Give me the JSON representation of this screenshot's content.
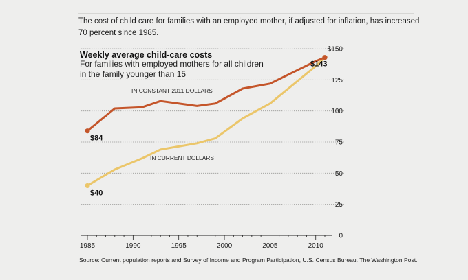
{
  "caption": "The cost of child care for families with an employed mother, if adjusted for inflation, has increased 70 percent since 1985.",
  "source": "Source: Current population reports and Survey of Income and Program Participation, U.S. Census Bureau. The Washington Post.",
  "chart_data": {
    "type": "line",
    "title": "Weekly average child-care costs",
    "subtitle_lines": [
      "For families with employed mothers for all children",
      "in the family younger than 15"
    ],
    "xlabel": "",
    "ylabel": "",
    "xlim": [
      1985,
      2011
    ],
    "ylim": [
      0,
      150
    ],
    "x_ticks": [
      "1985",
      "1990",
      "1995",
      "2000",
      "2005",
      "2010"
    ],
    "x_tick_values": [
      1985,
      1990,
      1995,
      2000,
      2005,
      2010
    ],
    "y_ticks": [
      "0",
      "25",
      "50",
      "75",
      "100",
      "125",
      "$150"
    ],
    "y_tick_values": [
      0,
      25,
      50,
      75,
      100,
      125,
      150
    ],
    "grid": true,
    "series": [
      {
        "name": "IN CONSTANT 2011 DOLLARS",
        "color": "#c4552a",
        "x": [
          1985,
          1988,
          1991,
          1993,
          1997,
          1999,
          2002,
          2005,
          2010,
          2011
        ],
        "values": [
          84,
          102,
          103,
          108,
          104,
          106,
          118,
          122,
          140,
          143
        ]
      },
      {
        "name": "IN CURRENT DOLLARS",
        "color": "#ebc66a",
        "x": [
          1985,
          1988,
          1991,
          1993,
          1997,
          1999,
          2002,
          2005,
          2010,
          2011
        ],
        "values": [
          40,
          53,
          62,
          69,
          74,
          78,
          94,
          106,
          136,
          143
        ]
      }
    ],
    "annotations": [
      {
        "text": "$84",
        "series": 0,
        "point": 0
      },
      {
        "text": "$40",
        "series": 1,
        "point": 0
      },
      {
        "text": "$143",
        "series": 0,
        "point": 9
      }
    ]
  }
}
